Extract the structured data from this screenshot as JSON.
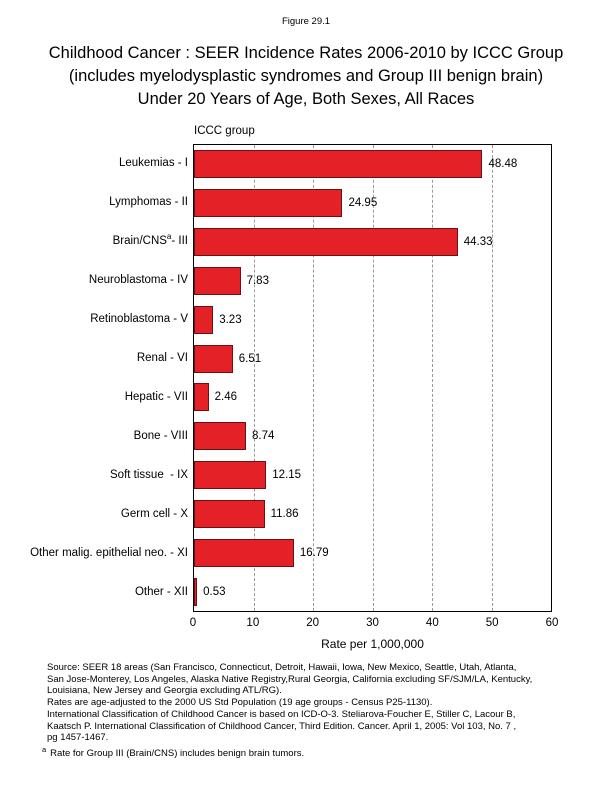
{
  "figure_label": "Figure 29.1",
  "title": {
    "lines": [
      "Childhood Cancer : SEER Incidence Rates 2006-2010 by ICCC Group",
      "(includes myelodysplastic syndromes and Group III benign brain)",
      "Under 20 Years of Age, Both Sexes, All Races"
    ]
  },
  "chart_data": {
    "type": "bar",
    "orientation": "horizontal",
    "y_axis_title": "ICCC group",
    "xlabel": "Rate per 1,000,000",
    "xlim": [
      0,
      60
    ],
    "xticks": [
      0,
      10,
      20,
      30,
      40,
      50,
      60
    ],
    "grid": "vertical dashed gridlines at each tick",
    "legend": "none",
    "bar_color": "#e32126",
    "categories": [
      {
        "pre": "Leukemias - I",
        "sup": "",
        "post": ""
      },
      {
        "pre": "Lymphomas - II",
        "sup": "",
        "post": ""
      },
      {
        "pre": "Brain/CNS",
        "sup": "a",
        "post": "- III"
      },
      {
        "pre": "Neuroblastoma - IV",
        "sup": "",
        "post": ""
      },
      {
        "pre": "Retinoblastoma - V",
        "sup": "",
        "post": ""
      },
      {
        "pre": "Renal - VI",
        "sup": "",
        "post": ""
      },
      {
        "pre": "Hepatic - VII",
        "sup": "",
        "post": ""
      },
      {
        "pre": "Bone - VIII",
        "sup": "",
        "post": ""
      },
      {
        "pre": "Soft tissue  - IX",
        "sup": "",
        "post": ""
      },
      {
        "pre": "Germ cell - X",
        "sup": "",
        "post": ""
      },
      {
        "pre": "Other malig. epithelial neo. - XI",
        "sup": "",
        "post": ""
      },
      {
        "pre": "Other - XII",
        "sup": "",
        "post": ""
      }
    ],
    "values": [
      48.48,
      24.95,
      44.33,
      7.83,
      3.23,
      6.51,
      2.46,
      8.74,
      12.15,
      11.86,
      16.79,
      0.53
    ]
  },
  "footer": {
    "lines": [
      "Source:  SEER 18 areas (San Francisco, Connecticut, Detroit, Hawaii, Iowa, New Mexico, Seattle, Utah, Atlanta,",
      "San Jose-Monterey, Los Angeles, Alaska Native Registry,Rural Georgia, California excluding SF/SJM/LA, Kentucky,",
      "Louisiana, New Jersey and Georgia excluding ATL/RG).",
      "Rates are age-adjusted to the 2000 US Std Population (19 age groups - Census P25-1130).",
      "International Classification of Childhood Cancer is based on ICD-O-3.  Steliarova-Foucher E, Stiller C, Lacour B,",
      "Kaatsch P. International Classification of Childhood Cancer, Third Edition.  Cancer. April 1, 2005: Vol 103, No. 7 ,",
      "pg 1457-1467."
    ]
  },
  "footnote": {
    "marker": "a",
    "text": "Rate for Group III (Brain/CNS) includes benign brain tumors."
  }
}
